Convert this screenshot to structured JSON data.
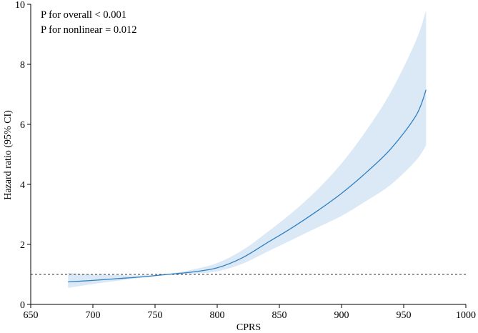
{
  "chart_data": {
    "type": "line",
    "title": "",
    "xlabel": "CPRS",
    "ylabel": "Hazard ratio (95% CI)",
    "xlim": [
      650,
      1000
    ],
    "ylim": [
      0,
      10
    ],
    "x_ticks": [
      650,
      700,
      750,
      800,
      850,
      900,
      950,
      1000
    ],
    "y_ticks": [
      0,
      2,
      4,
      6,
      8,
      10
    ],
    "reference_line": {
      "y": 1,
      "style": "dashed"
    },
    "annotations": [
      "P for overall < 0.001",
      "P for nonlinear = 0.012"
    ],
    "colors": {
      "line": "#2f7fc1",
      "band": "#dbe9f6",
      "reference": "#333333",
      "axis": "#000000"
    },
    "series": [
      {
        "name": "Hazard ratio",
        "x": [
          680,
          700,
          720,
          740,
          760,
          780,
          800,
          820,
          840,
          860,
          880,
          900,
          920,
          940,
          960,
          968
        ],
        "y": [
          0.75,
          0.8,
          0.86,
          0.92,
          1.0,
          1.08,
          1.22,
          1.55,
          2.05,
          2.55,
          3.1,
          3.7,
          4.4,
          5.2,
          6.3,
          7.15
        ],
        "lower": [
          0.55,
          0.68,
          0.79,
          0.89,
          0.98,
          1.02,
          1.1,
          1.35,
          1.75,
          2.15,
          2.55,
          2.95,
          3.45,
          4.0,
          4.8,
          5.3
        ],
        "upper": [
          1.05,
          1.0,
          0.98,
          0.97,
          1.02,
          1.16,
          1.38,
          1.8,
          2.4,
          3.05,
          3.8,
          4.7,
          5.8,
          7.1,
          8.8,
          9.8
        ]
      }
    ]
  }
}
